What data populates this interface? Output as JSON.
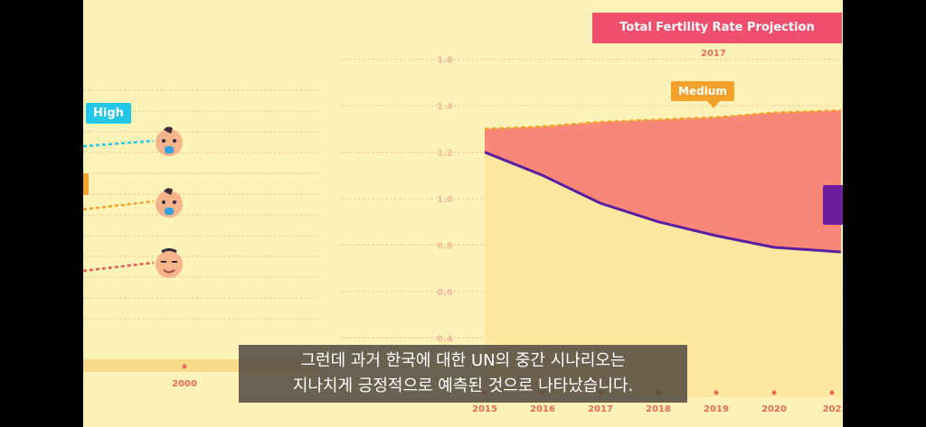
{
  "chart_data": {
    "type": "line",
    "title": "Total Fertility Rate Projection",
    "subtitle": "2017",
    "ylim": [
      0.3,
      1.7
    ],
    "yticks": [
      "1.6",
      "1.4",
      "1.2",
      "1.0",
      "0.8",
      "0.6",
      "0.4"
    ],
    "x": [
      "2015",
      "2016",
      "2017",
      "2018",
      "2019",
      "2020",
      "202"
    ],
    "series": [
      {
        "name": "Medium",
        "color": "#f4a12b",
        "values": [
          1.3,
          1.31,
          1.33,
          1.34,
          1.35,
          1.37,
          1.38
        ]
      },
      {
        "name": "",
        "color": "#5a1fa0",
        "values": [
          1.2,
          1.1,
          0.98,
          0.9,
          0.84,
          0.79,
          0.77
        ]
      }
    ],
    "left_panel": {
      "x_label": "2000",
      "scenarios": [
        {
          "name": "High",
          "color": "#22c7e8"
        },
        {
          "name": "",
          "color": "#f4a12b"
        },
        {
          "name": "",
          "color": "#e55a5a"
        }
      ]
    },
    "colors": {
      "background": "#fdf3b8",
      "gap_fill": "#f8877a",
      "past_fill": "#fde8a0",
      "title_bg": "#f0506e"
    }
  },
  "caption": {
    "line1": "그런데 과거 한국에 대한 UN의 중간 시나리오는",
    "line2": "지나치게 긍정적으로 예측된 것으로 나타났습니다."
  }
}
